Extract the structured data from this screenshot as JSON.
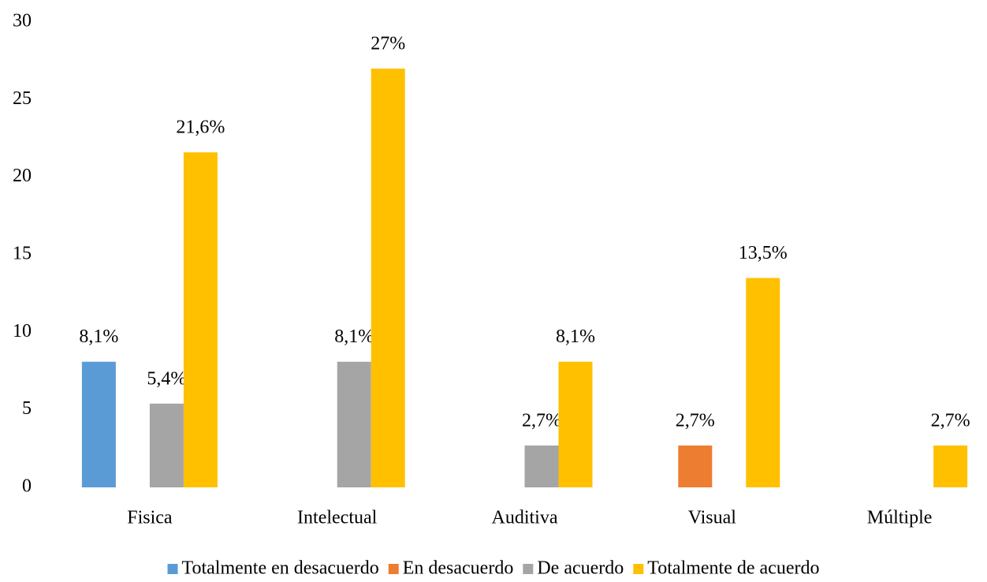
{
  "chart_data": {
    "type": "bar",
    "categories": [
      "Fisica",
      "Intelectual",
      "Auditiva",
      "Visual",
      "Múltiple"
    ],
    "series": [
      {
        "name": "Totalmente en desacuerdo",
        "color": "#5b9bd5",
        "values": [
          8.1,
          null,
          null,
          null,
          null
        ],
        "value_labels": [
          "8,1%",
          null,
          null,
          null,
          null
        ]
      },
      {
        "name": "En desacuerdo",
        "color": "#ed7d31",
        "values": [
          null,
          null,
          null,
          2.7,
          null
        ],
        "value_labels": [
          null,
          null,
          null,
          "2,7%",
          null
        ]
      },
      {
        "name": "De acuerdo",
        "color": "#a5a5a5",
        "values": [
          5.4,
          8.1,
          2.7,
          null,
          null
        ],
        "value_labels": [
          "5,4%",
          "8,1%",
          "2,7%",
          null,
          null
        ]
      },
      {
        "name": "Totalmente de acuerdo",
        "color": "#ffc000",
        "values": [
          21.6,
          27,
          8.1,
          13.5,
          2.7
        ],
        "value_labels": [
          "21,6%",
          "27%",
          "8,1%",
          "13,5%",
          "2,7%"
        ]
      }
    ],
    "ylim": [
      0,
      30
    ],
    "yticks": [
      0,
      5,
      10,
      15,
      20,
      25,
      30
    ],
    "grid": false,
    "legend": "bottom"
  }
}
